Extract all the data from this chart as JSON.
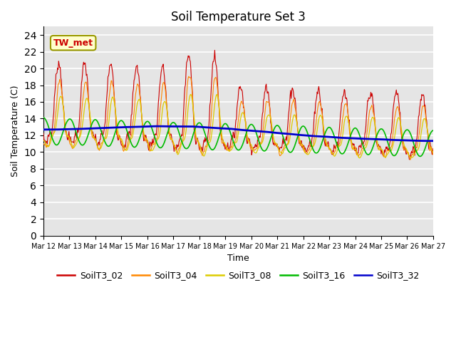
{
  "title": "Soil Temperature Set 3",
  "xlabel": "Time",
  "ylabel": "Soil Temperature (C)",
  "ylim": [
    0,
    25
  ],
  "yticks": [
    0,
    2,
    4,
    6,
    8,
    10,
    12,
    14,
    16,
    18,
    20,
    22,
    24
  ],
  "annotation": "TW_met",
  "series_colors": {
    "SoilT3_02": "#cc0000",
    "SoilT3_04": "#ff8800",
    "SoilT3_08": "#ddcc00",
    "SoilT3_16": "#00bb00",
    "SoilT3_32": "#0000cc"
  },
  "bg_color": "#e5e5e5",
  "fig_color": "#ffffff",
  "n_days": 15,
  "start_day": 12,
  "pts_per_day": 48
}
